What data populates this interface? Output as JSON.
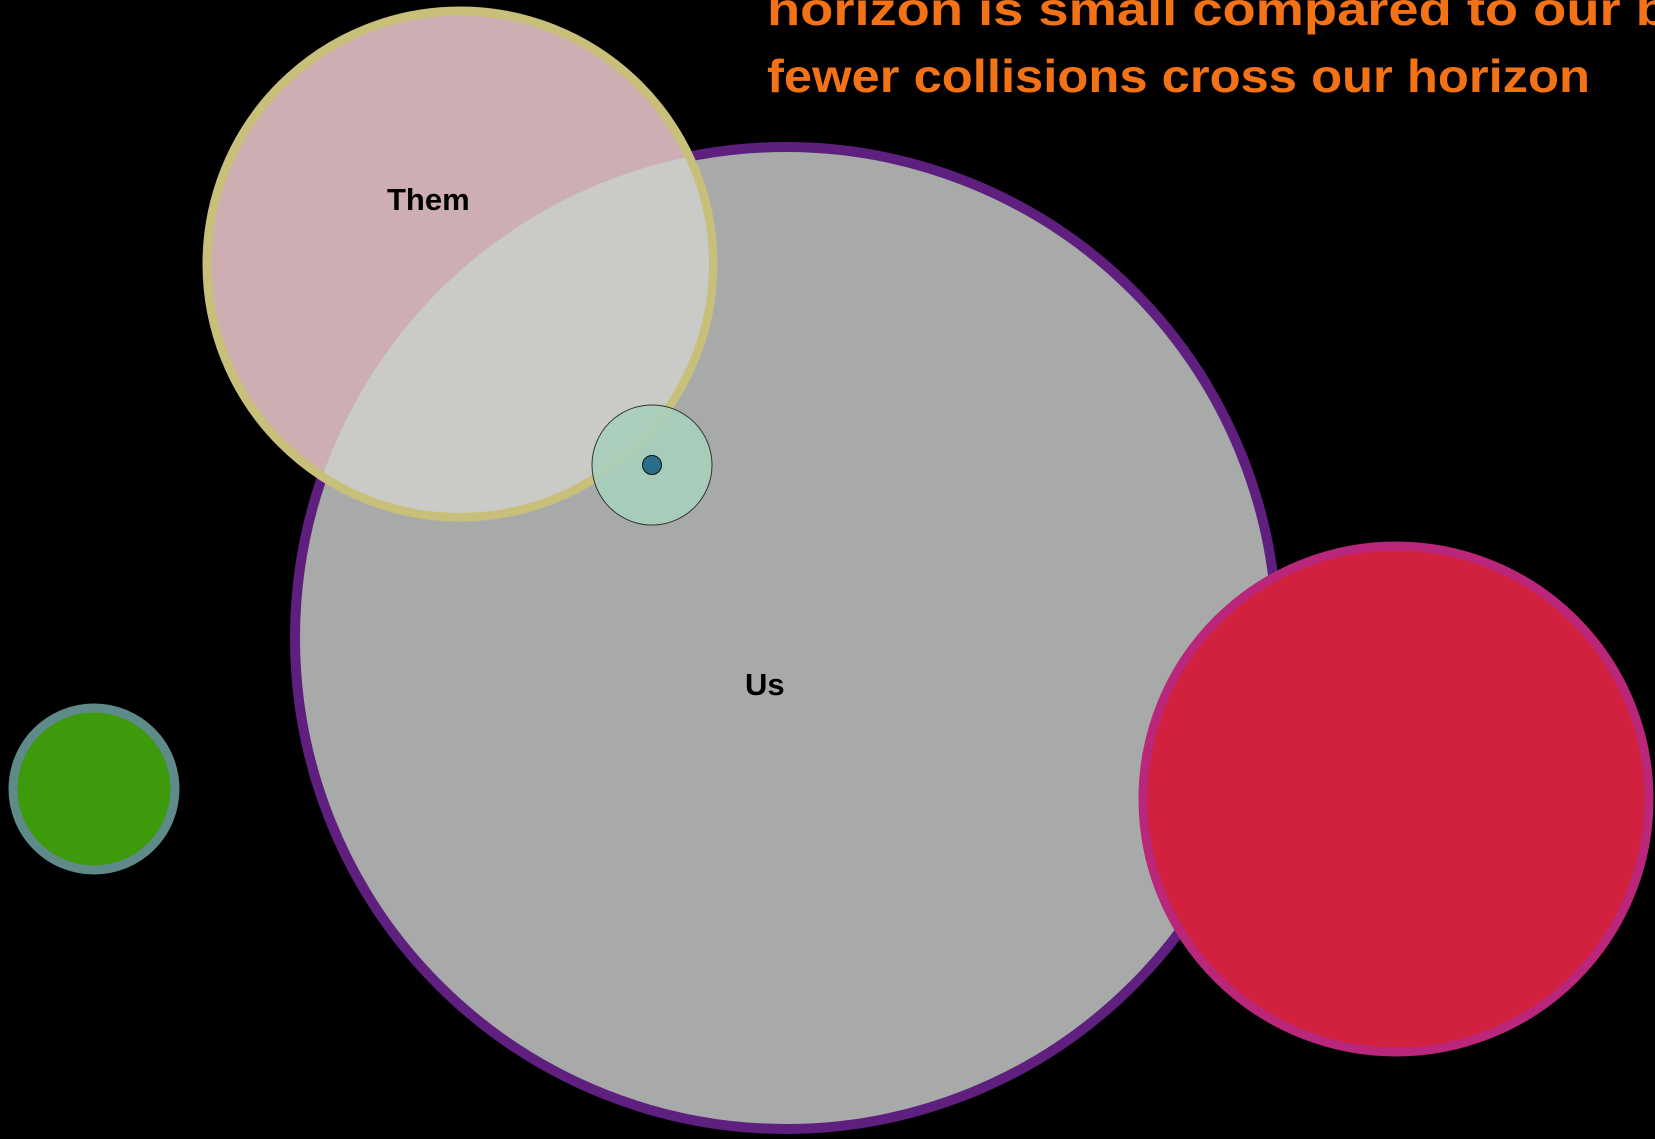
{
  "heading": {
    "lines": [
      "horizon is small compared to our bu",
      "fewer collisions cross our horizon"
    ]
  },
  "labels": {
    "them": "Them",
    "us": "Us"
  }
}
